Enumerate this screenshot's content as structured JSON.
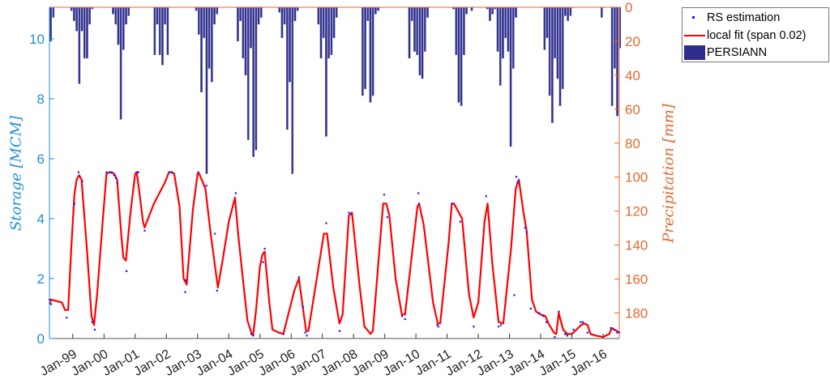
{
  "chart_data": {
    "type": "bar+line+scatter",
    "title": "",
    "xlabel": "",
    "ylabel_left": "Storage [MCM]",
    "ylabel_right": "Precipitation [mm]",
    "ylim_left": [
      0,
      11.05
    ],
    "ylim_right_reversed": [
      0,
      195
    ],
    "yticks_left": [
      0,
      2,
      4,
      6,
      8,
      10
    ],
    "yticks_right": [
      0,
      20,
      40,
      60,
      80,
      100,
      120,
      140,
      160,
      180
    ],
    "xlim_years": [
      1998.25,
      2016.52
    ],
    "xticks": [
      {
        "label": "Jan-99",
        "year": 1999
      },
      {
        "label": "Jan-00",
        "year": 2000
      },
      {
        "label": "Jan-01",
        "year": 2001
      },
      {
        "label": "Jan-02",
        "year": 2002
      },
      {
        "label": "Jan-03",
        "year": 2003
      },
      {
        "label": "Jan-04",
        "year": 2004
      },
      {
        "label": "Jan-05",
        "year": 2005
      },
      {
        "label": "Jan-06",
        "year": 2006
      },
      {
        "label": "Jan-07",
        "year": 2007
      },
      {
        "label": "Jan-08",
        "year": 2008
      },
      {
        "label": "Jan-09",
        "year": 2009
      },
      {
        "label": "Jan-10",
        "year": 2010
      },
      {
        "label": "Jan-11",
        "year": 2011
      },
      {
        "label": "Jan-12",
        "year": 2012
      },
      {
        "label": "Jan-13",
        "year": 2013
      },
      {
        "label": "Jan-14",
        "year": 2014
      },
      {
        "label": "Jan-15",
        "year": 2015
      },
      {
        "label": "Jan-16",
        "year": 2016
      }
    ],
    "legend": {
      "position": "outside-right-top",
      "entries": [
        {
          "label": "RS estimation",
          "type": "dot",
          "color": "#1a1aff"
        },
        {
          "label": "local fit (span 0.02)",
          "type": "line",
          "color": "#ff0000"
        },
        {
          "label": "PERSIANN",
          "type": "bar",
          "color": "#2e2e8a"
        }
      ]
    },
    "series": [
      {
        "name": "local fit (span 0.02)",
        "type": "line",
        "axis": "left",
        "color": "#ff0000",
        "points": [
          [
            1998.25,
            1.15
          ],
          [
            1998.3,
            1.3
          ],
          [
            1998.65,
            1.2
          ],
          [
            1998.75,
            0.95
          ],
          [
            1998.85,
            0.95
          ],
          [
            1998.95,
            3.0
          ],
          [
            1999.05,
            4.8
          ],
          [
            1999.12,
            5.3
          ],
          [
            1999.2,
            5.45
          ],
          [
            1999.28,
            5.3
          ],
          [
            1999.45,
            3.0
          ],
          [
            1999.6,
            0.75
          ],
          [
            1999.68,
            0.45
          ],
          [
            1999.78,
            1.5
          ],
          [
            1999.95,
            3.8
          ],
          [
            2000.08,
            5.5
          ],
          [
            2000.2,
            5.55
          ],
          [
            2000.32,
            5.5
          ],
          [
            2000.42,
            5.3
          ],
          [
            2000.55,
            3.5
          ],
          [
            2000.62,
            2.7
          ],
          [
            2000.7,
            2.6
          ],
          [
            2000.85,
            4.2
          ],
          [
            2001.0,
            5.5
          ],
          [
            2001.05,
            5.55
          ],
          [
            2001.12,
            5.0
          ],
          [
            2001.25,
            3.9
          ],
          [
            2001.3,
            3.7
          ],
          [
            2001.6,
            4.5
          ],
          [
            2001.95,
            5.2
          ],
          [
            2002.08,
            5.55
          ],
          [
            2002.15,
            5.55
          ],
          [
            2002.25,
            5.5
          ],
          [
            2002.42,
            4.4
          ],
          [
            2002.55,
            2.0
          ],
          [
            2002.65,
            1.8
          ],
          [
            2002.85,
            4.3
          ],
          [
            2003.0,
            5.5
          ],
          [
            2003.05,
            5.5
          ],
          [
            2003.25,
            5.0
          ],
          [
            2003.42,
            3.5
          ],
          [
            2003.65,
            1.7
          ],
          [
            2003.8,
            2.6
          ],
          [
            2004.0,
            3.9
          ],
          [
            2004.2,
            4.7
          ],
          [
            2004.3,
            3.5
          ],
          [
            2004.45,
            2.0
          ],
          [
            2004.6,
            0.6
          ],
          [
            2004.72,
            0.2
          ],
          [
            2004.78,
            0.1
          ],
          [
            2004.88,
            1.0
          ],
          [
            2005.0,
            2.4
          ],
          [
            2005.08,
            2.8
          ],
          [
            2005.15,
            2.9
          ],
          [
            2005.3,
            1.2
          ],
          [
            2005.4,
            0.3
          ],
          [
            2005.6,
            0.2
          ],
          [
            2005.75,
            0.15
          ],
          [
            2006.1,
            1.6
          ],
          [
            2006.25,
            2.0
          ],
          [
            2006.38,
            1.0
          ],
          [
            2006.48,
            0.25
          ],
          [
            2006.55,
            0.25
          ],
          [
            2006.7,
            1.2
          ],
          [
            2007.05,
            3.5
          ],
          [
            2007.15,
            3.5
          ],
          [
            2007.35,
            1.7
          ],
          [
            2007.55,
            0.5
          ],
          [
            2007.65,
            0.8
          ],
          [
            2007.85,
            4.1
          ],
          [
            2007.95,
            4.2
          ],
          [
            2008.2,
            1.7
          ],
          [
            2008.35,
            0.4
          ],
          [
            2008.55,
            0.15
          ],
          [
            2008.62,
            0.25
          ],
          [
            2008.95,
            4.5
          ],
          [
            2009.05,
            4.5
          ],
          [
            2009.15,
            4.1
          ],
          [
            2009.35,
            2.0
          ],
          [
            2009.55,
            0.8
          ],
          [
            2009.65,
            0.8
          ],
          [
            2010.05,
            4.4
          ],
          [
            2010.1,
            4.5
          ],
          [
            2010.25,
            3.8
          ],
          [
            2010.55,
            1.2
          ],
          [
            2010.7,
            0.5
          ],
          [
            2010.78,
            0.5
          ],
          [
            2011.05,
            3.2
          ],
          [
            2011.15,
            4.5
          ],
          [
            2011.22,
            4.5
          ],
          [
            2011.48,
            4.0
          ],
          [
            2011.7,
            1.5
          ],
          [
            2011.85,
            0.7
          ],
          [
            2012.0,
            1.2
          ],
          [
            2012.2,
            3.9
          ],
          [
            2012.3,
            4.5
          ],
          [
            2012.45,
            2.5
          ],
          [
            2012.65,
            0.55
          ],
          [
            2012.8,
            0.5
          ],
          [
            2013.05,
            3.0
          ],
          [
            2013.2,
            5.0
          ],
          [
            2013.3,
            5.3
          ],
          [
            2013.45,
            4.2
          ],
          [
            2013.55,
            3.6
          ],
          [
            2013.72,
            1.3
          ],
          [
            2013.85,
            0.9
          ],
          [
            2014.0,
            0.8
          ],
          [
            2014.15,
            0.75
          ],
          [
            2014.25,
            0.5
          ],
          [
            2014.42,
            0.2
          ],
          [
            2014.5,
            0.15
          ],
          [
            2014.58,
            0.85
          ],
          [
            2014.72,
            0.3
          ],
          [
            2014.85,
            0.15
          ],
          [
            2015.0,
            0.15
          ],
          [
            2015.15,
            0.3
          ],
          [
            2015.3,
            0.45
          ],
          [
            2015.4,
            0.5
          ],
          [
            2015.5,
            0.45
          ],
          [
            2015.6,
            0.15
          ],
          [
            2015.75,
            0.1
          ],
          [
            2016.0,
            0.05
          ],
          [
            2016.2,
            0.15
          ],
          [
            2016.28,
            0.35
          ],
          [
            2016.35,
            0.3
          ],
          [
            2016.45,
            0.25
          ],
          [
            2016.52,
            0.2
          ]
        ]
      },
      {
        "name": "RS estimation",
        "type": "scatter",
        "axis": "left",
        "color": "#1a1aff",
        "points": [
          [
            1998.25,
            1.3
          ],
          [
            1998.3,
            1.15
          ],
          [
            1998.8,
            0.7
          ],
          [
            1999.05,
            4.5
          ],
          [
            1999.18,
            5.55
          ],
          [
            1999.3,
            5.25
          ],
          [
            1999.62,
            0.55
          ],
          [
            1999.7,
            0.3
          ],
          [
            2000.08,
            5.55
          ],
          [
            2000.18,
            5.55
          ],
          [
            2000.25,
            5.55
          ],
          [
            2000.32,
            5.45
          ],
          [
            2000.38,
            5.35
          ],
          [
            2000.42,
            5.2
          ],
          [
            2000.72,
            2.25
          ],
          [
            2001.05,
            5.55
          ],
          [
            2001.1,
            5.55
          ],
          [
            2001.3,
            3.6
          ],
          [
            2002.1,
            5.55
          ],
          [
            2002.18,
            5.55
          ],
          [
            2002.6,
            1.55
          ],
          [
            2002.62,
            1.95
          ],
          [
            2003.02,
            5.55
          ],
          [
            2003.28,
            5.1
          ],
          [
            2003.55,
            3.5
          ],
          [
            2003.62,
            1.6
          ],
          [
            2004.22,
            4.85
          ],
          [
            2004.72,
            0.15
          ],
          [
            2004.78,
            0.1
          ],
          [
            2005.15,
            3.0
          ],
          [
            2005.1,
            2.55
          ],
          [
            2005.75,
            0.15
          ],
          [
            2006.25,
            2.05
          ],
          [
            2006.38,
            1.05
          ],
          [
            2006.45,
            0.2
          ],
          [
            2006.5,
            0.1
          ],
          [
            2007.12,
            3.85
          ],
          [
            2007.55,
            0.25
          ],
          [
            2007.85,
            4.2
          ],
          [
            2007.92,
            4.15
          ],
          [
            2008.98,
            4.8
          ],
          [
            2009.08,
            4.05
          ],
          [
            2009.55,
            0.75
          ],
          [
            2009.65,
            0.65
          ],
          [
            2010.08,
            4.85
          ],
          [
            2010.1,
            4.5
          ],
          [
            2010.68,
            0.45
          ],
          [
            2010.72,
            0.4
          ],
          [
            2011.15,
            4.5
          ],
          [
            2011.42,
            3.9
          ],
          [
            2011.85,
            0.4
          ],
          [
            2012.25,
            4.75
          ],
          [
            2012.65,
            0.4
          ],
          [
            2012.72,
            0.45
          ],
          [
            2013.15,
            1.45
          ],
          [
            2013.22,
            5.4
          ],
          [
            2013.25,
            5.2
          ],
          [
            2013.3,
            5.25
          ],
          [
            2013.5,
            3.7
          ],
          [
            2013.55,
            3.55
          ],
          [
            2013.68,
            1.0
          ],
          [
            2013.95,
            0.85
          ],
          [
            2014.08,
            0.75
          ],
          [
            2014.18,
            0.55
          ],
          [
            2014.45,
            0.05
          ],
          [
            2014.58,
            0.9
          ],
          [
            2014.78,
            0.15
          ],
          [
            2014.85,
            0.1
          ],
          [
            2015.05,
            0.3
          ],
          [
            2015.28,
            0.55
          ],
          [
            2015.35,
            0.55
          ],
          [
            2015.5,
            0.2
          ],
          [
            2016.25,
            0.35
          ],
          [
            2016.35,
            0.3
          ],
          [
            2016.45,
            0.2
          ],
          [
            2016.52,
            0.2
          ]
        ]
      },
      {
        "name": "PERSIANN",
        "type": "bar",
        "axis": "right",
        "color": "#2e2e8a",
        "start_year": 1998.25,
        "monthly_mm": [
          20,
          6,
          0,
          0,
          0,
          0,
          0,
          0,
          2,
          8,
          14,
          45,
          14,
          30,
          30,
          10,
          1,
          0,
          0,
          0,
          0,
          0,
          0,
          0,
          4,
          10,
          22,
          66,
          25,
          10,
          5,
          0,
          0,
          0,
          0,
          0,
          0,
          0,
          0,
          0,
          28,
          10,
          28,
          34,
          10,
          28,
          0,
          0,
          0,
          0,
          0,
          0,
          0,
          0,
          0,
          0,
          2,
          16,
          50,
          18,
          98,
          36,
          44,
          10,
          4,
          0,
          0,
          0,
          0,
          0,
          0,
          0,
          20,
          8,
          30,
          40,
          78,
          24,
          88,
          84,
          10,
          6,
          0,
          0,
          0,
          0,
          0,
          0,
          3,
          18,
          10,
          72,
          44,
          98,
          8,
          2,
          0,
          0,
          0,
          0,
          0,
          0,
          0,
          10,
          30,
          18,
          76,
          30,
          28,
          18,
          6,
          0,
          0,
          0,
          0,
          0,
          0,
          0,
          0,
          0,
          52,
          48,
          8,
          56,
          52,
          4,
          2,
          0,
          0,
          0,
          0,
          0,
          0,
          0,
          0,
          0,
          0,
          0,
          30,
          8,
          26,
          28,
          40,
          42,
          26,
          6,
          0,
          0,
          0,
          0,
          0,
          0,
          0,
          0,
          0,
          1,
          28,
          56,
          58,
          28,
          4,
          0,
          2,
          0,
          0,
          0,
          0,
          0,
          1,
          8,
          4,
          1,
          26,
          46,
          30,
          18,
          26,
          82,
          36,
          6,
          0,
          0,
          0,
          0,
          0,
          0,
          0,
          0,
          0,
          0,
          25,
          18,
          52,
          68,
          30,
          42,
          58,
          48,
          5,
          8,
          5,
          0,
          0,
          0,
          0,
          0,
          0,
          0,
          0,
          0,
          0,
          0,
          6,
          0,
          0,
          0,
          58,
          36,
          64,
          24,
          48,
          10,
          0,
          0,
          0,
          0,
          0,
          0,
          0,
          0,
          2,
          6,
          34,
          22,
          55,
          68,
          28,
          32,
          40,
          10,
          0,
          0,
          0,
          0,
          0,
          0,
          0,
          0,
          0,
          6,
          4,
          10,
          50,
          2,
          28,
          4,
          38,
          8,
          0,
          0,
          0,
          0,
          0,
          0,
          0,
          0,
          20,
          20,
          40,
          54,
          36,
          56,
          26,
          6,
          0,
          0,
          0,
          0,
          0,
          0,
          0,
          0,
          0,
          0,
          2,
          2,
          10,
          30,
          38,
          46,
          20,
          60,
          42,
          28,
          32,
          55,
          0
        ]
      }
    ]
  },
  "legend": {
    "rs_label": "RS estimation",
    "fit_label": "local fit (span 0.02)",
    "persiann_label": "PERSIANN"
  },
  "axes": {
    "left_label": "Storage [MCM]",
    "right_label": "Precipitation [mm]"
  },
  "colors": {
    "left_axis": "#1f8fd8",
    "right_axis": "#e06a30",
    "bottom_axis": "#333333",
    "fit": "#ff0000",
    "rs": "#1a1aff",
    "bars": "#2e2e8a"
  }
}
